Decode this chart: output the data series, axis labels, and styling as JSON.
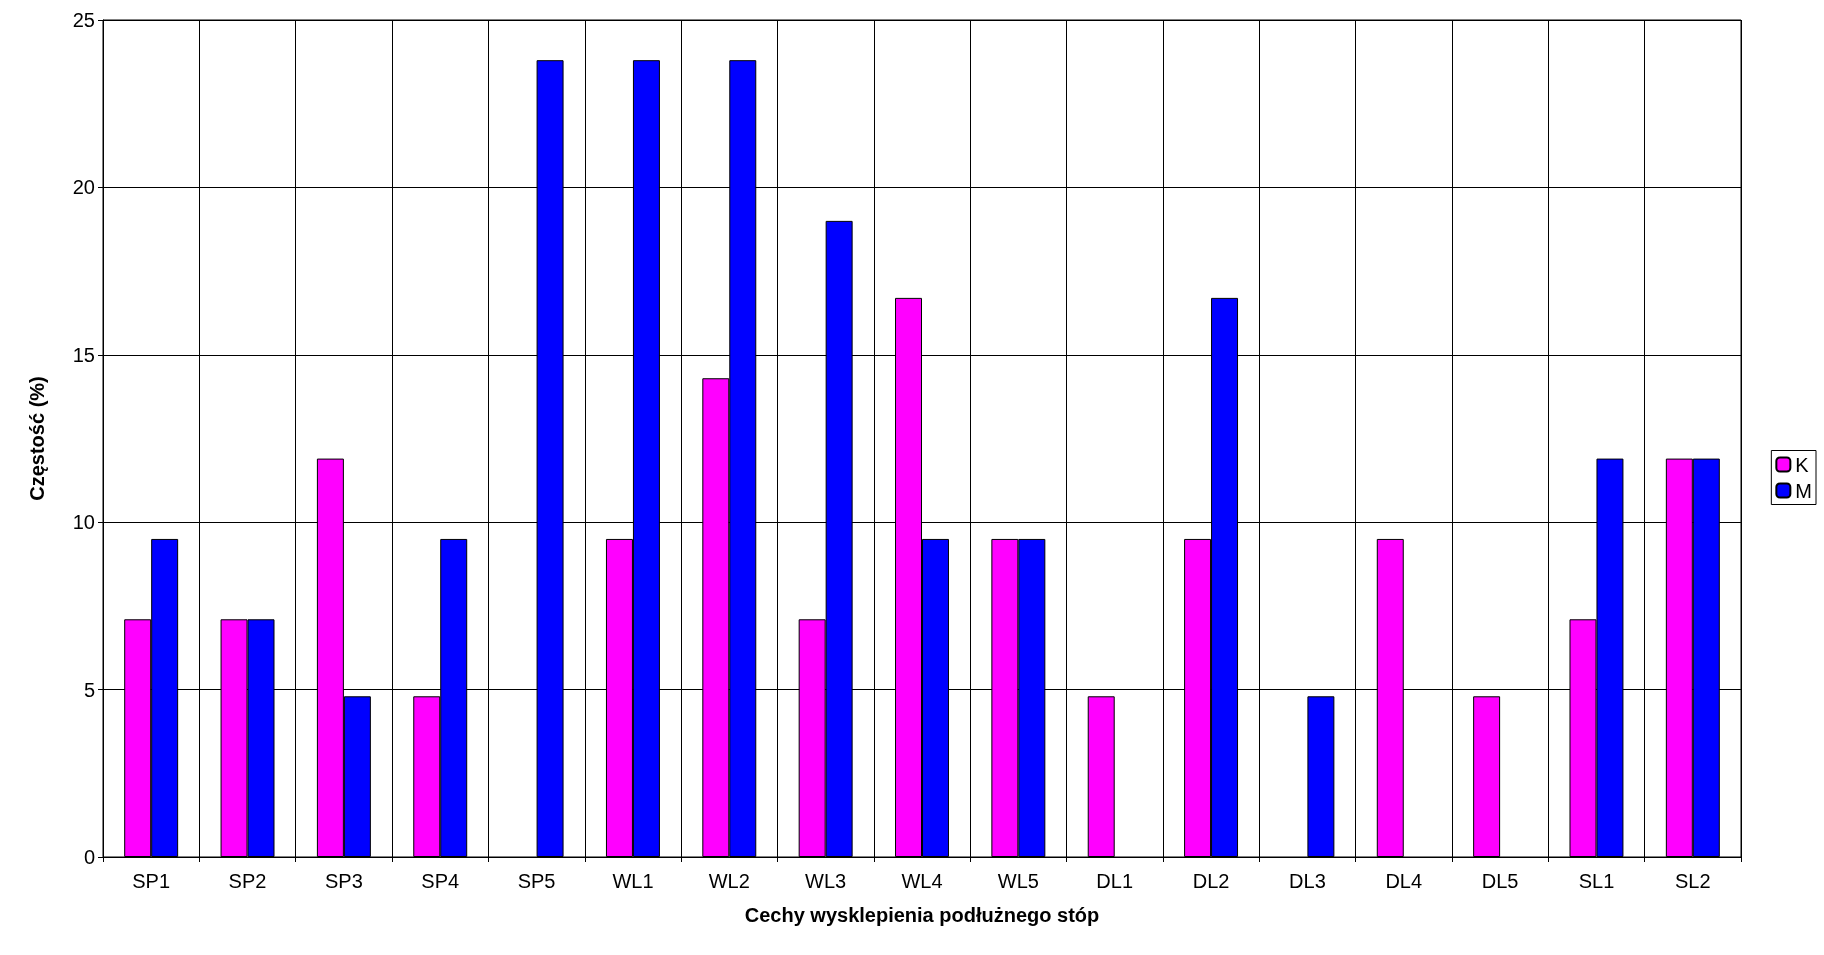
{
  "chart_data": {
    "type": "bar",
    "xlabel": "Cechy wysklepienia podłużnego stóp",
    "ylabel": "Częstość (%)",
    "categories": [
      "SP1",
      "SP2",
      "SP3",
      "SP4",
      "SP5",
      "WL1",
      "WL2",
      "WL3",
      "WL4",
      "WL5",
      "DL1",
      "DL2",
      "DL3",
      "DL4",
      "DL5",
      "SL1",
      "SL2"
    ],
    "series": [
      {
        "name": "K",
        "color": "#ff00ff",
        "values": [
          7.1,
          7.1,
          11.9,
          4.8,
          null,
          9.5,
          14.3,
          7.1,
          16.7,
          9.5,
          4.8,
          9.5,
          null,
          9.5,
          4.8,
          7.1,
          11.9
        ]
      },
      {
        "name": "M",
        "color": "#0000ff",
        "values": [
          9.5,
          7.1,
          4.8,
          9.5,
          23.8,
          23.8,
          23.8,
          19.0,
          9.5,
          9.5,
          null,
          16.7,
          4.8,
          null,
          null,
          11.9,
          11.9
        ]
      }
    ],
    "ylim": [
      0,
      25
    ],
    "yticks": [
      0,
      5,
      10,
      15,
      20,
      25
    ],
    "grid": true,
    "legend": "right"
  }
}
